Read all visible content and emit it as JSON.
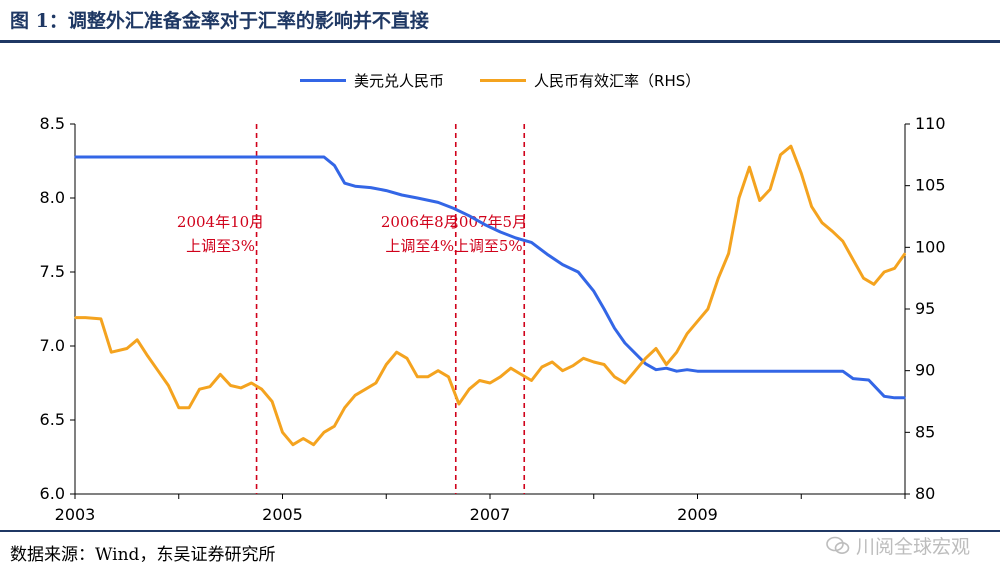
{
  "header": {
    "title": "图 1：调整外汇准备金率对于汇率的影响并不直接"
  },
  "footer": {
    "source": "数据来源：Wind，东吴证券研究所",
    "watermark": "川阅全球宏观"
  },
  "chart_data": {
    "type": "line",
    "x_ticks": [
      "2003",
      "2005",
      "2007",
      "2009"
    ],
    "x_range": [
      2003.0,
      2011.0
    ],
    "y_left": {
      "ticks": [
        "6.0",
        "6.5",
        "7.0",
        "7.5",
        "8.0",
        "8.5"
      ],
      "range": [
        6.0,
        8.5
      ]
    },
    "y_right": {
      "ticks": [
        "80",
        "85",
        "90",
        "95",
        "100",
        "105",
        "110"
      ],
      "range": [
        80,
        110
      ]
    },
    "grid": false,
    "legend_position": "top-center",
    "series": [
      {
        "name": "美元兑人民币",
        "axis": "left",
        "color": "#3366e6",
        "points": [
          [
            2003.0,
            8.277
          ],
          [
            2003.2,
            8.277
          ],
          [
            2003.4,
            8.277
          ],
          [
            2003.6,
            8.277
          ],
          [
            2003.8,
            8.277
          ],
          [
            2004.0,
            8.277
          ],
          [
            2004.2,
            8.277
          ],
          [
            2004.4,
            8.277
          ],
          [
            2004.6,
            8.277
          ],
          [
            2004.8,
            8.277
          ],
          [
            2005.0,
            8.277
          ],
          [
            2005.2,
            8.277
          ],
          [
            2005.4,
            8.277
          ],
          [
            2005.5,
            8.22
          ],
          [
            2005.6,
            8.1
          ],
          [
            2005.7,
            8.08
          ],
          [
            2005.85,
            8.07
          ],
          [
            2006.0,
            8.05
          ],
          [
            2006.15,
            8.02
          ],
          [
            2006.3,
            8.0
          ],
          [
            2006.5,
            7.97
          ],
          [
            2006.65,
            7.93
          ],
          [
            2006.8,
            7.88
          ],
          [
            2006.95,
            7.82
          ],
          [
            2007.1,
            7.77
          ],
          [
            2007.25,
            7.73
          ],
          [
            2007.4,
            7.7
          ],
          [
            2007.55,
            7.62
          ],
          [
            2007.7,
            7.55
          ],
          [
            2007.85,
            7.5
          ],
          [
            2008.0,
            7.37
          ],
          [
            2008.1,
            7.25
          ],
          [
            2008.2,
            7.12
          ],
          [
            2008.3,
            7.02
          ],
          [
            2008.4,
            6.95
          ],
          [
            2008.5,
            6.88
          ],
          [
            2008.6,
            6.84
          ],
          [
            2008.7,
            6.85
          ],
          [
            2008.8,
            6.83
          ],
          [
            2008.9,
            6.84
          ],
          [
            2009.0,
            6.83
          ],
          [
            2009.2,
            6.83
          ],
          [
            2009.4,
            6.83
          ],
          [
            2009.6,
            6.83
          ],
          [
            2009.8,
            6.83
          ],
          [
            2010.0,
            6.83
          ],
          [
            2010.2,
            6.83
          ],
          [
            2010.4,
            6.83
          ],
          [
            2010.5,
            6.78
          ],
          [
            2010.65,
            6.77
          ],
          [
            2010.8,
            6.66
          ],
          [
            2010.9,
            6.65
          ],
          [
            2011.0,
            6.65
          ]
        ]
      },
      {
        "name": "人民币有效汇率（RHS）",
        "axis": "right",
        "color": "#f4a31f",
        "points": [
          [
            2003.0,
            94.3
          ],
          [
            2003.1,
            94.3
          ],
          [
            2003.25,
            94.2
          ],
          [
            2003.35,
            91.5
          ],
          [
            2003.5,
            91.8
          ],
          [
            2003.6,
            92.5
          ],
          [
            2003.7,
            91.2
          ],
          [
            2003.8,
            90.0
          ],
          [
            2003.9,
            88.8
          ],
          [
            2004.0,
            87.0
          ],
          [
            2004.1,
            87.0
          ],
          [
            2004.2,
            88.5
          ],
          [
            2004.3,
            88.7
          ],
          [
            2004.4,
            89.7
          ],
          [
            2004.5,
            88.8
          ],
          [
            2004.6,
            88.6
          ],
          [
            2004.7,
            89.0
          ],
          [
            2004.8,
            88.5
          ],
          [
            2004.9,
            87.5
          ],
          [
            2005.0,
            85.0
          ],
          [
            2005.1,
            84.0
          ],
          [
            2005.2,
            84.5
          ],
          [
            2005.3,
            84.0
          ],
          [
            2005.4,
            85.0
          ],
          [
            2005.5,
            85.5
          ],
          [
            2005.6,
            87.0
          ],
          [
            2005.7,
            88.0
          ],
          [
            2005.8,
            88.5
          ],
          [
            2005.9,
            89.0
          ],
          [
            2006.0,
            90.5
          ],
          [
            2006.1,
            91.5
          ],
          [
            2006.2,
            91.0
          ],
          [
            2006.3,
            89.5
          ],
          [
            2006.4,
            89.5
          ],
          [
            2006.5,
            90.0
          ],
          [
            2006.6,
            89.5
          ],
          [
            2006.7,
            87.3
          ],
          [
            2006.8,
            88.5
          ],
          [
            2006.9,
            89.2
          ],
          [
            2007.0,
            89.0
          ],
          [
            2007.1,
            89.5
          ],
          [
            2007.2,
            90.2
          ],
          [
            2007.3,
            89.7
          ],
          [
            2007.4,
            89.2
          ],
          [
            2007.5,
            90.3
          ],
          [
            2007.6,
            90.7
          ],
          [
            2007.7,
            90.0
          ],
          [
            2007.8,
            90.4
          ],
          [
            2007.9,
            91.0
          ],
          [
            2008.0,
            90.7
          ],
          [
            2008.1,
            90.5
          ],
          [
            2008.2,
            89.5
          ],
          [
            2008.3,
            89.0
          ],
          [
            2008.4,
            90.0
          ],
          [
            2008.5,
            91.0
          ],
          [
            2008.6,
            91.8
          ],
          [
            2008.7,
            90.5
          ],
          [
            2008.8,
            91.5
          ],
          [
            2008.9,
            93.0
          ],
          [
            2009.0,
            94.0
          ],
          [
            2009.1,
            95.0
          ],
          [
            2009.2,
            97.5
          ],
          [
            2009.3,
            99.5
          ],
          [
            2009.4,
            104.0
          ],
          [
            2009.5,
            106.5
          ],
          [
            2009.6,
            103.8
          ],
          [
            2009.7,
            104.7
          ],
          [
            2009.8,
            107.5
          ],
          [
            2009.9,
            108.2
          ],
          [
            2010.0,
            106.0
          ],
          [
            2010.1,
            103.3
          ],
          [
            2010.2,
            102.0
          ],
          [
            2010.3,
            101.3
          ],
          [
            2010.4,
            100.5
          ],
          [
            2010.5,
            99.0
          ],
          [
            2010.6,
            97.5
          ],
          [
            2010.7,
            97.0
          ],
          [
            2010.8,
            98.0
          ],
          [
            2010.9,
            98.3
          ],
          [
            2011.0,
            99.5
          ]
        ]
      }
    ],
    "annotations": [
      {
        "x": 2004.75,
        "line1": "2004年10月",
        "line2": "上调至3%"
      },
      {
        "x": 2006.67,
        "line1": "2006年8月",
        "line2": "上调至4%"
      },
      {
        "x": 2007.33,
        "line1": "2007年5月",
        "line2": "上调至5%"
      }
    ],
    "annotation_color": "#d0021b"
  }
}
